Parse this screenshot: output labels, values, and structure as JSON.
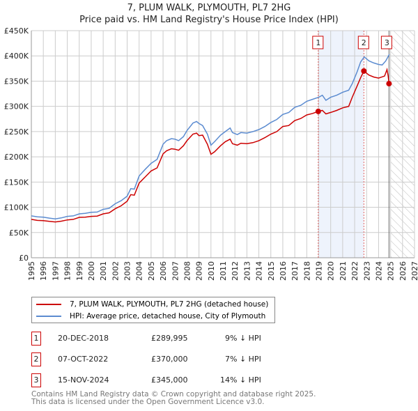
{
  "chart_data": {
    "type": "line",
    "title": "7, PLUM WALK, PLYMOUTH, PL7 2HG",
    "subtitle": "Price paid vs. HM Land Registry's House Price Index (HPI)",
    "xlim": [
      1995,
      2027
    ],
    "ylim": [
      0,
      450000
    ],
    "x_ticks": [
      "1995",
      "1996",
      "1997",
      "1998",
      "1999",
      "2000",
      "2001",
      "2002",
      "2003",
      "2004",
      "2005",
      "2006",
      "2007",
      "2008",
      "2009",
      "2010",
      "2011",
      "2012",
      "2013",
      "2014",
      "2015",
      "2016",
      "2017",
      "2018",
      "2019",
      "2020",
      "2021",
      "2022",
      "2023",
      "2024",
      "2025",
      "2026",
      "2027"
    ],
    "y_ticks": [
      {
        "v": 0,
        "label": "£0"
      },
      {
        "v": 50000,
        "label": "£50K"
      },
      {
        "v": 100000,
        "label": "£100K"
      },
      {
        "v": 150000,
        "label": "£150K"
      },
      {
        "v": 200000,
        "label": "£200K"
      },
      {
        "v": 250000,
        "label": "£250K"
      },
      {
        "v": 300000,
        "label": "£300K"
      },
      {
        "v": 350000,
        "label": "£350K"
      },
      {
        "v": 400000,
        "label": "£400K"
      },
      {
        "v": 450000,
        "label": "£450K"
      }
    ],
    "grid": true,
    "series": [
      {
        "name": "7, PLUM WALK, PLYMOUTH, PL7 2HG (detached house)",
        "color": "#cc0000",
        "points": [
          [
            1995,
            76000
          ],
          [
            1995.5,
            74000
          ],
          [
            1996,
            73500
          ],
          [
            1996.5,
            72000
          ],
          [
            1997,
            71000
          ],
          [
            1997.5,
            72500
          ],
          [
            1998,
            75000
          ],
          [
            1998.5,
            76000
          ],
          [
            1999,
            80000
          ],
          [
            1999.5,
            80500
          ],
          [
            2000,
            82000
          ],
          [
            2000.5,
            82500
          ],
          [
            2001,
            87000
          ],
          [
            2001.5,
            89000
          ],
          [
            2002,
            97000
          ],
          [
            2002.5,
            103000
          ],
          [
            2003,
            112000
          ],
          [
            2003.3,
            125000
          ],
          [
            2003.6,
            124000
          ],
          [
            2004,
            148000
          ],
          [
            2004.5,
            160000
          ],
          [
            2005,
            172000
          ],
          [
            2005.5,
            178000
          ],
          [
            2006,
            206000
          ],
          [
            2006.3,
            212000
          ],
          [
            2006.7,
            216000
          ],
          [
            2007,
            215000
          ],
          [
            2007.3,
            213000
          ],
          [
            2007.7,
            222000
          ],
          [
            2008,
            232000
          ],
          [
            2008.5,
            245000
          ],
          [
            2008.8,
            247000
          ],
          [
            2009,
            242000
          ],
          [
            2009.3,
            243000
          ],
          [
            2009.7,
            225000
          ],
          [
            2010,
            205000
          ],
          [
            2010.3,
            210000
          ],
          [
            2010.8,
            222000
          ],
          [
            2011.2,
            230000
          ],
          [
            2011.6,
            235000
          ],
          [
            2011.8,
            226000
          ],
          [
            2012.2,
            223000
          ],
          [
            2012.5,
            227000
          ],
          [
            2013,
            226000
          ],
          [
            2013.5,
            228000
          ],
          [
            2014,
            232000
          ],
          [
            2014.5,
            238000
          ],
          [
            2015,
            245000
          ],
          [
            2015.5,
            250000
          ],
          [
            2016,
            260000
          ],
          [
            2016.5,
            262000
          ],
          [
            2017,
            272000
          ],
          [
            2017.5,
            276000
          ],
          [
            2018,
            283000
          ],
          [
            2018.5,
            286000
          ],
          [
            2018.96,
            289995
          ],
          [
            2019.3,
            292000
          ],
          [
            2019.6,
            285000
          ],
          [
            2020,
            288000
          ],
          [
            2020.5,
            292000
          ],
          [
            2021,
            297000
          ],
          [
            2021.5,
            300000
          ],
          [
            2021.8,
            318000
          ],
          [
            2022.2,
            340000
          ],
          [
            2022.5,
            357000
          ],
          [
            2022.77,
            370000
          ],
          [
            2023.2,
            362000
          ],
          [
            2023.6,
            358000
          ],
          [
            2024,
            356000
          ],
          [
            2024.5,
            360000
          ],
          [
            2024.7,
            373000
          ],
          [
            2024.8,
            360000
          ],
          [
            2024.87,
            345000
          ]
        ]
      },
      {
        "name": "HPI: Average price, detached house, City of Plymouth",
        "color": "#5b8bd0",
        "points": [
          [
            1995,
            83000
          ],
          [
            1995.5,
            81000
          ],
          [
            1996,
            80500
          ],
          [
            1996.5,
            78500
          ],
          [
            1997,
            77000
          ],
          [
            1997.5,
            79000
          ],
          [
            1998,
            82000
          ],
          [
            1998.5,
            83000
          ],
          [
            1999,
            87000
          ],
          [
            1999.5,
            88000
          ],
          [
            2000,
            90000
          ],
          [
            2000.5,
            90500
          ],
          [
            2001,
            96000
          ],
          [
            2001.5,
            98000
          ],
          [
            2002,
            107000
          ],
          [
            2002.5,
            113000
          ],
          [
            2003,
            122000
          ],
          [
            2003.3,
            137000
          ],
          [
            2003.6,
            136000
          ],
          [
            2004,
            162000
          ],
          [
            2004.5,
            175000
          ],
          [
            2005,
            187000
          ],
          [
            2005.5,
            195000
          ],
          [
            2006,
            225000
          ],
          [
            2006.3,
            232000
          ],
          [
            2006.7,
            236000
          ],
          [
            2007,
            235000
          ],
          [
            2007.3,
            232000
          ],
          [
            2007.7,
            240000
          ],
          [
            2008,
            252000
          ],
          [
            2008.5,
            267000
          ],
          [
            2008.8,
            270000
          ],
          [
            2009,
            266000
          ],
          [
            2009.3,
            262000
          ],
          [
            2009.7,
            245000
          ],
          [
            2010,
            223000
          ],
          [
            2010.3,
            230000
          ],
          [
            2010.8,
            243000
          ],
          [
            2011.2,
            250000
          ],
          [
            2011.6,
            257000
          ],
          [
            2011.8,
            248000
          ],
          [
            2012.2,
            244000
          ],
          [
            2012.5,
            248000
          ],
          [
            2013,
            247000
          ],
          [
            2013.5,
            250000
          ],
          [
            2014,
            254000
          ],
          [
            2014.5,
            260000
          ],
          [
            2015,
            268000
          ],
          [
            2015.5,
            274000
          ],
          [
            2016,
            284000
          ],
          [
            2016.5,
            288000
          ],
          [
            2017,
            298000
          ],
          [
            2017.5,
            302000
          ],
          [
            2018,
            310000
          ],
          [
            2018.5,
            314000
          ],
          [
            2019,
            318000
          ],
          [
            2019.3,
            322000
          ],
          [
            2019.6,
            312000
          ],
          [
            2020,
            318000
          ],
          [
            2020.5,
            322000
          ],
          [
            2021,
            328000
          ],
          [
            2021.5,
            332000
          ],
          [
            2021.8,
            345000
          ],
          [
            2022.2,
            368000
          ],
          [
            2022.5,
            388000
          ],
          [
            2022.8,
            398000
          ],
          [
            2023.2,
            390000
          ],
          [
            2023.6,
            386000
          ],
          [
            2024,
            383000
          ],
          [
            2024.3,
            382000
          ],
          [
            2024.6,
            390000
          ],
          [
            2024.9,
            403000
          ]
        ]
      }
    ],
    "sales": [
      {
        "label": "1",
        "x": 2018.96,
        "y": 289995
      },
      {
        "label": "2",
        "x": 2022.77,
        "y": 370000
      },
      {
        "label": "3",
        "x": 2024.87,
        "y": 345000
      }
    ],
    "shaded_range": [
      2018.96,
      2022.77
    ],
    "forecast_hatch_from": 2025,
    "legend_position": "below"
  },
  "legend": {
    "items": [
      "7, PLUM WALK, PLYMOUTH, PL7 2HG (detached house)",
      "HPI: Average price, detached house, City of Plymouth"
    ]
  },
  "table": [
    {
      "num": "1",
      "date": "20-DEC-2018",
      "price": "£289,995",
      "hpi": "9% ↓ HPI"
    },
    {
      "num": "2",
      "date": "07-OCT-2022",
      "price": "£370,000",
      "hpi": "7% ↓ HPI"
    },
    {
      "num": "3",
      "date": "15-NOV-2024",
      "price": "£345,000",
      "hpi": "14% ↓ HPI"
    }
  ],
  "footer": {
    "line1": "Contains HM Land Registry data © Crown copyright and database right 2025.",
    "line2": "This data is licensed under the Open Government Licence v3.0."
  }
}
